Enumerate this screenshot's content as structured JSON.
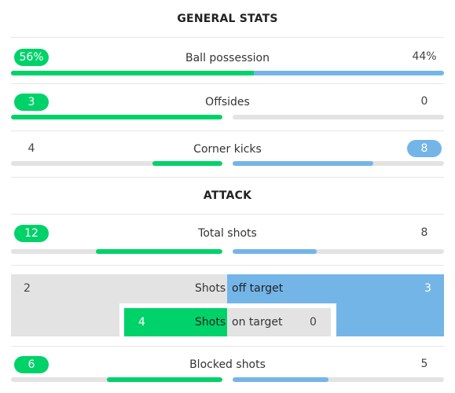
{
  "sections": {
    "general_title": "GENERAL STATS",
    "attack_title": "ATTACK"
  },
  "possession": {
    "label": "Ball possession",
    "home": "56%",
    "away": "44%",
    "home_fraction": 0.56
  },
  "offsides": {
    "label": "Offsides",
    "home": "3",
    "away": "0"
  },
  "corner_kicks": {
    "label": "Corner kicks",
    "home": "4",
    "away": "8"
  },
  "total_shots": {
    "label": "Total shots",
    "home": "12",
    "away": "8"
  },
  "shots_breakdown": {
    "off_target": {
      "home": "2",
      "shots_word": "Shots",
      "label": "off target",
      "away": "3"
    },
    "on_target": {
      "home": "4",
      "shots_word": "Shots",
      "label": "on target",
      "away": "0"
    }
  },
  "blocked_shots": {
    "label": "Blocked shots",
    "home": "6",
    "away": "5"
  },
  "colors": {
    "home": "#00d26a",
    "away": "#74b5e8",
    "track": "#e3e3e3"
  }
}
